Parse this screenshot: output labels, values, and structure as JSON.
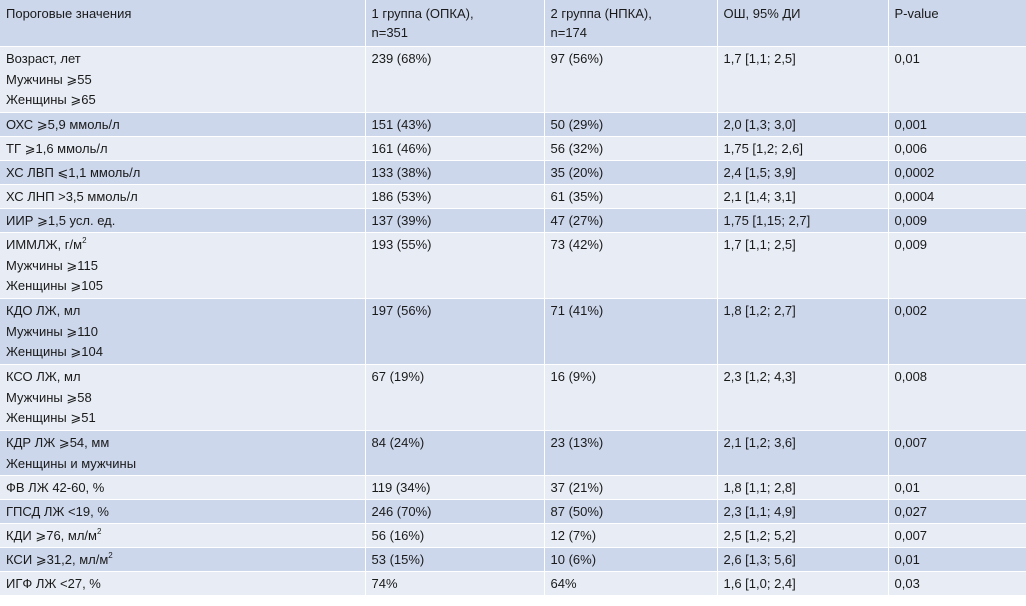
{
  "header": {
    "col1": "Пороговые значения",
    "col2_line1": "1 группа (ОПКА),",
    "col2_line2": "n=351",
    "col3_line1": "2 группа (НПКА),",
    "col3_line2": "n=174",
    "col4": "ОШ, 95% ДИ",
    "col5": "P-value"
  },
  "rows": [
    {
      "lines": [
        "Возраст, лет",
        "Мужчины ⩾55",
        "Женщины ⩾65"
      ],
      "g1": "239 (68%)",
      "g2": "97 (56%)",
      "or": "1,7 [1,1; 2,5]",
      "p": "0,01"
    },
    {
      "lines": [
        "ОХС ⩾5,9 ммоль/л"
      ],
      "g1": "151 (43%)",
      "g2": "50 (29%)",
      "or": "2,0 [1,3; 3,0]",
      "p": "0,001"
    },
    {
      "lines": [
        "ТГ ⩾1,6 ммоль/л"
      ],
      "g1": "161 (46%)",
      "g2": "56 (32%)",
      "or": "1,75 [1,2; 2,6]",
      "p": "0,006"
    },
    {
      "lines": [
        "ХС ЛВП ⩽1,1 ммоль/л"
      ],
      "g1": "133 (38%)",
      "g2": "35 (20%)",
      "or": "2,4 [1,5; 3,9]",
      "p": "0,0002"
    },
    {
      "lines": [
        "ХС ЛНП >3,5 ммоль/л"
      ],
      "g1": "186 (53%)",
      "g2": "61 (35%)",
      "or": "2,1 [1,4; 3,1]",
      "p": "0,0004"
    },
    {
      "lines": [
        "ИИР ⩾1,5 усл. ед."
      ],
      "g1": "137 (39%)",
      "g2": "47 (27%)",
      "or": "1,75 [1,15; 2,7]",
      "p": "0,009"
    },
    {
      "lines": [
        "ИММЛЖ, г/м",
        "Мужчины ⩾115",
        "Женщины ⩾105"
      ],
      "sup0": "2",
      "g1": "193 (55%)",
      "g2": "73 (42%)",
      "or": "1,7 [1,1; 2,5]",
      "p": "0,009"
    },
    {
      "lines": [
        "КДО ЛЖ, мл",
        "Мужчины ⩾110",
        "Женщины ⩾104"
      ],
      "g1": "197 (56%)",
      "g2": "71 (41%)",
      "or": "1,8 [1,2; 2,7]",
      "p": "0,002"
    },
    {
      "lines": [
        "КСО ЛЖ, мл",
        "Мужчины ⩾58",
        "Женщины ⩾51"
      ],
      "g1": "67 (19%)",
      "g2": "16 (9%)",
      "or": "2,3 [1,2; 4,3]",
      "p": "0,008"
    },
    {
      "lines": [
        "КДР ЛЖ ⩾54, мм",
        "Женщины и мужчины"
      ],
      "g1": "84 (24%)",
      "g2": "23 (13%)",
      "or": "2,1 [1,2; 3,6]",
      "p": "0,007"
    },
    {
      "lines": [
        "ФВ ЛЖ 42-60, %"
      ],
      "g1": "119 (34%)",
      "g2": "37 (21%)",
      "or": "1,8 [1,1; 2,8]",
      "p": "0,01"
    },
    {
      "lines": [
        "ГПСД ЛЖ <19, %"
      ],
      "g1": "246 (70%)",
      "g2": "87 (50%)",
      "or": "2,3 [1,1; 4,9]",
      "p": "0,027"
    },
    {
      "lines": [
        "КДИ ⩾76, мл/м"
      ],
      "sup0": "2",
      "g1": "56 (16%)",
      "g2": "12 (7%)",
      "or": "2,5 [1,2; 5,2]",
      "p": "0,007"
    },
    {
      "lines": [
        "КСИ ⩾31,2, мл/м"
      ],
      "sup0": "2",
      "g1": "53 (15%)",
      "g2": "10 (6%)",
      "or": "2,6 [1,3; 5,6]",
      "p": "0,01"
    },
    {
      "lines": [
        "ИГФ ЛЖ <27, %"
      ],
      "g1": "74%",
      "g2": "64%",
      "or": "1,6 [1,0; 2,4]",
      "p": "0,03"
    }
  ]
}
